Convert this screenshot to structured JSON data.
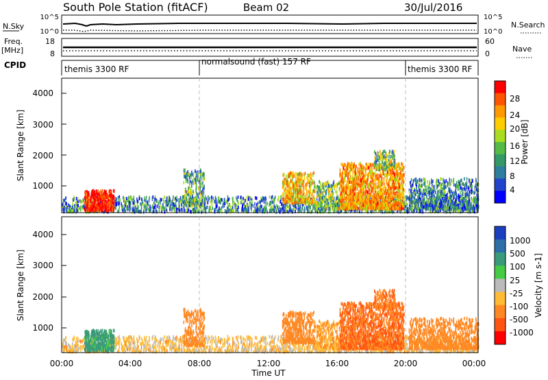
{
  "header": {
    "station": "South Pole Station (fitACF)",
    "beam": "Beam 02",
    "date": "30/Jul/2016"
  },
  "strips": {
    "nsky_label": "N.Sky",
    "nsky_ticks": [
      "10^5",
      "10^0"
    ],
    "nsearch_label": "N.Search",
    "nsearch_ticks": [
      "10^5",
      "10^0"
    ],
    "freq_label_1": "Freq.",
    "freq_label_2": "[MHz]",
    "freq_ticks": [
      "18",
      "8"
    ],
    "nave_label": "Nave",
    "nave_ticks": [
      "60",
      "0"
    ],
    "cpid_label": "CPID",
    "cpid_segments": [
      {
        "label": "themis 3300 RF",
        "start": 0,
        "end": 8
      },
      {
        "label": "normalsound (fast) 157 RF",
        "start": 8,
        "end": 20
      },
      {
        "label": "themis 3300 RF",
        "start": 20,
        "end": 24
      }
    ]
  },
  "panels": {
    "power_ylabel": "Slant Range [km]",
    "velocity_ylabel": "Slant Range [km]",
    "y_ticks": [
      "4000",
      "3000",
      "2000",
      "1000"
    ],
    "x_ticks": [
      "00:00",
      "04:00",
      "08:00",
      "12:00",
      "16:00",
      "20:00",
      "00:00"
    ],
    "xlabel": "Time UT"
  },
  "power_colorbar": {
    "label": "Power [dB]",
    "ticks": [
      "28",
      "24",
      "20",
      "16",
      "12",
      "8",
      "4"
    ],
    "colors": [
      "#ff0000",
      "#ff5500",
      "#ff9900",
      "#ffcc00",
      "#aadd22",
      "#55bb44",
      "#339966",
      "#2e7ea0",
      "#2244cc",
      "#0000ff"
    ]
  },
  "velocity_colorbar": {
    "label": "Velocity [m s-1]",
    "ticks": [
      "1000",
      "500",
      "100",
      "25",
      "-25",
      "-100",
      "-500",
      "-1000"
    ],
    "colors": [
      "#1a3fbf",
      "#2e6fa8",
      "#3a9b7a",
      "#44cc44",
      "#bbbbbb",
      "#ffbb33",
      "#ff8822",
      "#ff5511",
      "#ff0000"
    ]
  },
  "chart_data": {
    "type": "heatmap",
    "title": "South Pole Station (fitACF) Beam 02 30/Jul/2016",
    "xlabel": "Time UT",
    "ylabel": "Slant Range [km]",
    "xlim": [
      0,
      24
    ],
    "ylim": [
      180,
      4600
    ],
    "x_unit": "hours UT",
    "regions": [
      {
        "t0": 0.0,
        "t1": 24.0,
        "r0": 200,
        "r1": 700,
        "power": 8,
        "velocity": -50,
        "density": 0.35
      },
      {
        "t0": 1.3,
        "t1": 3.0,
        "r0": 250,
        "r1": 900,
        "power": 28,
        "velocity": 100,
        "density": 0.85
      },
      {
        "t0": 7.0,
        "t1": 8.2,
        "r0": 400,
        "r1": 1600,
        "power": 10,
        "velocity": -300,
        "density": 0.4
      },
      {
        "t0": 12.7,
        "t1": 14.5,
        "r0": 500,
        "r1": 1500,
        "power": 18,
        "velocity": -200,
        "density": 0.55
      },
      {
        "t0": 14.5,
        "t1": 16.0,
        "r0": 300,
        "r1": 1200,
        "power": 12,
        "velocity": -100,
        "density": 0.4
      },
      {
        "t0": 16.0,
        "t1": 19.7,
        "r0": 300,
        "r1": 1800,
        "power": 20,
        "velocity": -500,
        "density": 0.7
      },
      {
        "t0": 18.0,
        "t1": 19.2,
        "r0": 1600,
        "r1": 2200,
        "power": 12,
        "velocity": -400,
        "density": 0.5
      },
      {
        "t0": 20.0,
        "t1": 24.0,
        "r0": 300,
        "r1": 1300,
        "power": 8,
        "velocity": -300,
        "density": 0.45
      }
    ]
  }
}
